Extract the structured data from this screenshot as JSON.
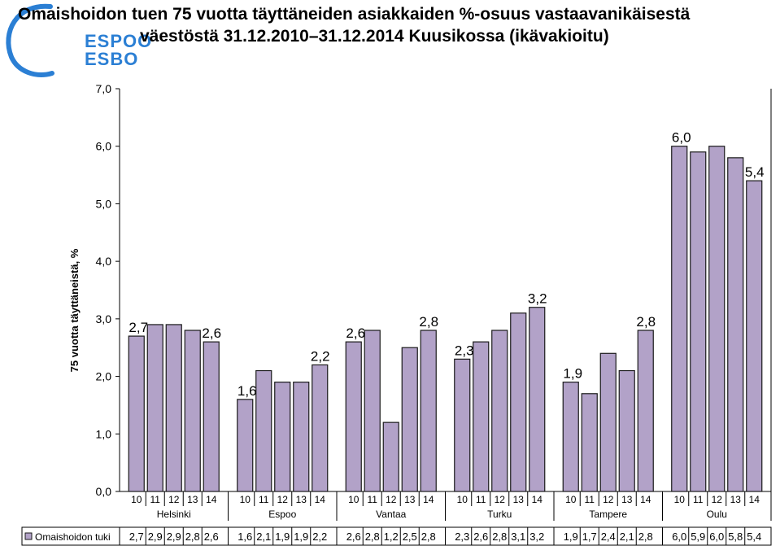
{
  "title_lines": [
    "Omaishoidon tuen 75 vuotta täyttäneiden asiakkaiden %-osuus vastaavanikäisestä",
    "väestöstä 31.12.2010–31.12.2014 Kuusikossa (ikävakioitu)"
  ],
  "logo": {
    "line1": "ESPOO",
    "line2": "ESBO",
    "color": "#2b7fd4"
  },
  "colors": {
    "bar_fill": "#b2a2c8",
    "bar_stroke": "#1a1a1a"
  },
  "chart_data": {
    "type": "bar",
    "ylabel": "75 vuotta täyttäneistä, %",
    "ylim": [
      0,
      7
    ],
    "yticks": [
      "0,0",
      "1,0",
      "2,0",
      "3,0",
      "4,0",
      "5,0",
      "6,0",
      "7,0"
    ],
    "grid": false,
    "legend": "bottom-left data table",
    "series": [
      {
        "name": "Omaishoidon tuki"
      }
    ],
    "groups": [
      {
        "name": "Helsinki",
        "categories": [
          "10",
          "11",
          "12",
          "13",
          "14"
        ],
        "values": [
          2.7,
          2.9,
          2.9,
          2.8,
          2.6
        ],
        "labels": [
          "2,7",
          "2,9",
          "2,9",
          "2,8",
          "2,6"
        ],
        "shown_labels": [
          "2,7",
          null,
          null,
          null,
          "2,6"
        ]
      },
      {
        "name": "Espoo",
        "categories": [
          "10",
          "11",
          "12",
          "13",
          "14"
        ],
        "values": [
          1.6,
          2.1,
          1.9,
          1.9,
          2.2
        ],
        "labels": [
          "1,6",
          "2,1",
          "1,9",
          "1,9",
          "2,2"
        ],
        "shown_labels": [
          "1,6",
          null,
          null,
          null,
          "2,2"
        ]
      },
      {
        "name": "Vantaa",
        "categories": [
          "10",
          "11",
          "12",
          "13",
          "14"
        ],
        "values": [
          2.6,
          2.8,
          1.2,
          2.5,
          2.8
        ],
        "labels": [
          "2,6",
          "2,8",
          "1,2",
          "2,5",
          "2,8"
        ],
        "shown_labels": [
          "2,6",
          null,
          null,
          null,
          "2,8"
        ]
      },
      {
        "name": "Turku",
        "categories": [
          "10",
          "11",
          "12",
          "13",
          "14"
        ],
        "values": [
          2.3,
          2.6,
          2.8,
          3.1,
          3.2
        ],
        "labels": [
          "2,3",
          "2,6",
          "2,8",
          "3,1",
          "3,2"
        ],
        "shown_labels": [
          "2,3",
          null,
          null,
          null,
          "3,2"
        ]
      },
      {
        "name": "Tampere",
        "categories": [
          "10",
          "11",
          "12",
          "13",
          "14"
        ],
        "values": [
          1.9,
          1.7,
          2.4,
          2.1,
          2.8
        ],
        "labels": [
          "1,9",
          "1,7",
          "2,4",
          "2,1",
          "2,8"
        ],
        "shown_labels": [
          "1,9",
          null,
          null,
          null,
          "2,8"
        ]
      },
      {
        "name": "Oulu",
        "categories": [
          "10",
          "11",
          "12",
          "13",
          "14"
        ],
        "values": [
          6.0,
          5.9,
          6.0,
          5.8,
          5.4
        ],
        "labels": [
          "6,0",
          "5,9",
          "6,0",
          "5,8",
          "5,4"
        ],
        "shown_labels": [
          "6,0",
          null,
          null,
          null,
          "5,4"
        ]
      }
    ]
  }
}
